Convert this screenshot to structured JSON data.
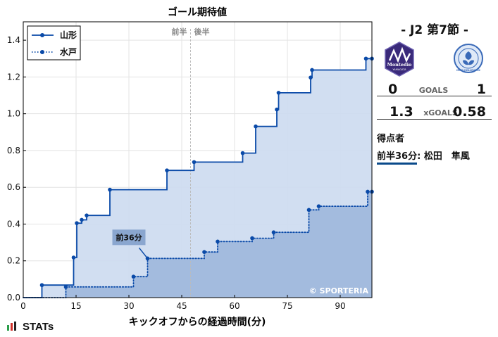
{
  "chart_data": {
    "type": "line",
    "title": "ゴール期待値",
    "xlabel": "キックオフからの経過時間(分)",
    "ylabel": "",
    "xlim": [
      0,
      99
    ],
    "ylim": [
      0,
      1.5
    ],
    "xticks": [
      0,
      15,
      30,
      45,
      60,
      75,
      90
    ],
    "yticks": [
      0.0,
      0.2,
      0.4,
      0.6,
      0.8,
      1.0,
      1.2,
      1.4
    ],
    "grid": true,
    "legend_position": "top-left",
    "half_labels": [
      "前半",
      "後半"
    ],
    "half_time_minute": 47.5,
    "watermark": "© SPORTERIA",
    "series": [
      {
        "name": "山形",
        "style": "solid",
        "color": "#0a4aa8",
        "fill": "#ccdaf0",
        "x": [
          0,
          5.3,
          14.3,
          15.2,
          16.6,
          18,
          24.6,
          40.8,
          48.5,
          62.3,
          66,
          72,
          72.5,
          81.6,
          82,
          97.3,
          99
        ],
        "y": [
          0,
          0.068,
          0.218,
          0.405,
          0.423,
          0.447,
          0.587,
          0.692,
          0.737,
          0.786,
          0.931,
          1.023,
          1.114,
          1.197,
          1.238,
          1.3,
          1.3
        ]
      },
      {
        "name": "水戸",
        "style": "dotted",
        "color": "#0a4aa8",
        "fill": "#9db7db",
        "x": [
          0,
          12.1,
          31.3,
          35.3,
          51.4,
          55.2,
          65,
          71.1,
          81.1,
          83.9,
          97.8,
          99
        ],
        "y": [
          0,
          0.058,
          0.114,
          0.213,
          0.248,
          0.305,
          0.323,
          0.355,
          0.477,
          0.497,
          0.576,
          0.576
        ]
      }
    ],
    "annotations": [
      {
        "text": "前36分",
        "x": 35.3,
        "y": 0.213
      }
    ]
  },
  "panel": {
    "match_title": "- J2 第7節 -",
    "home_score": "0",
    "goals_label": "GOALS",
    "away_score": "1",
    "home_xg": "1.3",
    "xg_label": "xGOALS",
    "away_xg": "0.58",
    "scorers_title": "得点者",
    "scorers": [
      {
        "minute": "前半36分",
        "name": ": 松田　隼風"
      }
    ],
    "home_crest_text": "Montedio",
    "home_crest_sub": "YAMAGATA",
    "away_crest_text": "MITO HOLLYHOCK"
  },
  "footer": {
    "brand": "STATs"
  },
  "colors": {
    "line": "#0a4aa8",
    "home_fill": "#ccdaf0",
    "away_fill": "#9db7db",
    "home_crest": "#3a2a7a",
    "away_crest": "#3a6ab8"
  }
}
